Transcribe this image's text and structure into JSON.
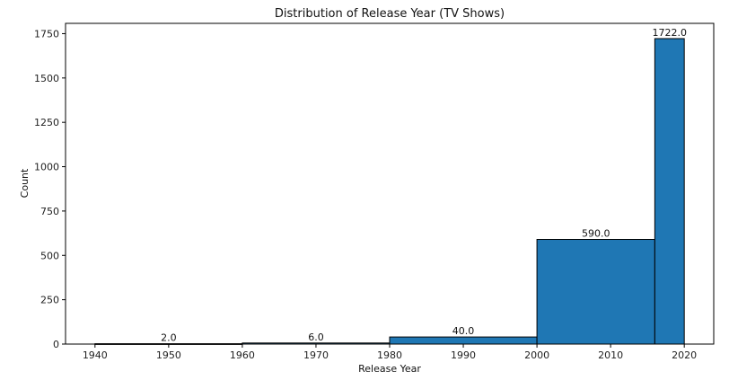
{
  "chart_data": {
    "type": "bar",
    "title": "Distribution of Release Year (TV Shows)",
    "xlabel": "Release Year",
    "ylabel": "Count",
    "xlim": [
      1936,
      2024
    ],
    "ylim": [
      0,
      1808
    ],
    "xticks": [
      1940,
      1950,
      1960,
      1970,
      1980,
      1990,
      2000,
      2010,
      2020
    ],
    "yticks": [
      0,
      250,
      500,
      750,
      1000,
      1250,
      1500,
      1750
    ],
    "bins": [
      {
        "x0": 1940,
        "x1": 1960,
        "value": 2,
        "label": "2.0"
      },
      {
        "x0": 1960,
        "x1": 1980,
        "value": 6,
        "label": "6.0"
      },
      {
        "x0": 1980,
        "x1": 2000,
        "value": 40,
        "label": "40.0"
      },
      {
        "x0": 2000,
        "x1": 2016,
        "value": 590,
        "label": "590.0"
      },
      {
        "x0": 2016,
        "x1": 2020,
        "value": 1722,
        "label": "1722.0"
      }
    ],
    "grid": false,
    "bar_color": "#1f77b4",
    "edge_color": "#000000"
  }
}
